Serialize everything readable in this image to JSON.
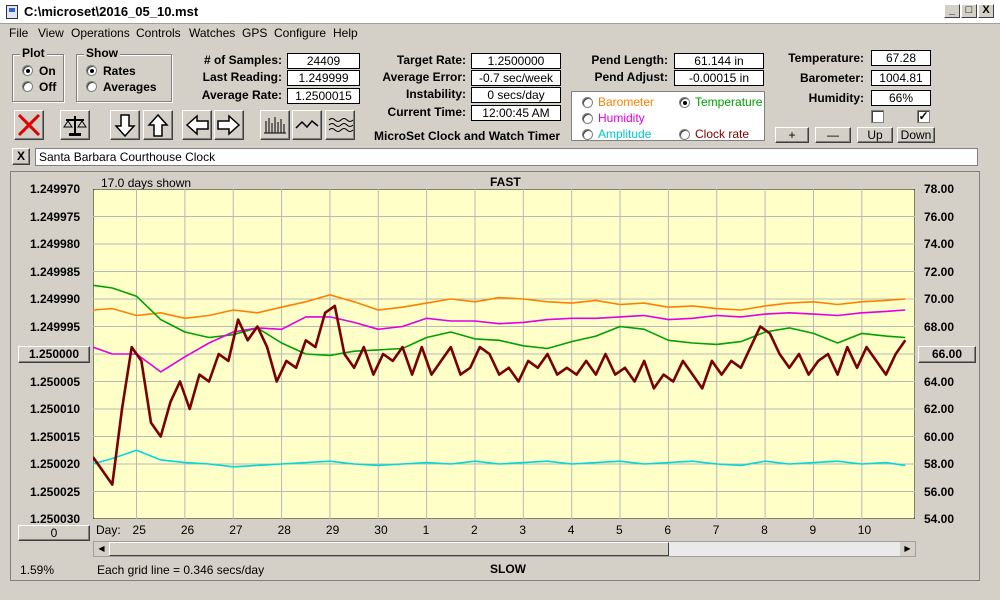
{
  "window": {
    "title": "C:\\microset\\2016_05_10.mst",
    "minimize": "_",
    "maximize": "□",
    "close": "X"
  },
  "menu": [
    "File",
    "View",
    "Operations",
    "Controls",
    "Watches",
    "GPS",
    "Configure",
    "Help"
  ],
  "plot_group": {
    "title": "Plot",
    "options": [
      "On",
      "Off"
    ],
    "selected": "On"
  },
  "show_group": {
    "title": "Show",
    "options": [
      "Rates",
      "Averages"
    ],
    "selected": "Rates"
  },
  "stats": {
    "samples_label": "# of Samples:",
    "samples": "24409",
    "last_reading_label": "Last Reading:",
    "last_reading": "1.249999",
    "average_rate_label": "Average Rate:",
    "average_rate": "1.2500015"
  },
  "rates": {
    "target_rate_label": "Target Rate:",
    "target_rate": "1.2500000",
    "average_error_label": "Average Error:",
    "average_error": "-0.7 sec/week",
    "instability_label": "Instability:",
    "instability": "0 secs/day",
    "current_time_label": "Current Time:",
    "current_time": "12:00:45 AM"
  },
  "app_name": "MicroSet Clock and Watch Timer",
  "pendulum": {
    "length_label": "Pend Length:",
    "length": "61.144 in",
    "adjust_label": "Pend Adjust:",
    "adjust": "-0.00015 in"
  },
  "sensor_select": {
    "options": [
      {
        "label": "Barometer",
        "color": "#ff8000",
        "checked": false
      },
      {
        "label": "Temperature",
        "color": "#00a000",
        "checked": true
      },
      {
        "label": "Humidity",
        "color": "#e000e0",
        "checked": false
      },
      {
        "label": "Amplitude",
        "color": "#00d0d0",
        "checked": false
      },
      {
        "label": "Clock rate",
        "color": "#800000",
        "checked": false
      }
    ]
  },
  "environment": {
    "temperature_label": "Temperature:",
    "temperature": "67.28",
    "barometer_label": "Barometer:",
    "barometer": "1004.81",
    "humidity_label": "Humidity:",
    "humidity": "66%",
    "checkbox1": false,
    "checkbox2": true
  },
  "scale_buttons": [
    "+",
    "—",
    "Up",
    "Down"
  ],
  "clock_name": {
    "close": "X",
    "value": "Santa Barbara Courthouse Clock"
  },
  "chart_data": {
    "type": "line",
    "days_shown": "17.0 days shown",
    "top_label": "FAST",
    "bottom_label": "SLOW",
    "left_axis": {
      "ticks": [
        "1.249970",
        "1.249975",
        "1.249980",
        "1.249985",
        "1.249990",
        "1.249995",
        "1.250000",
        "1.250005",
        "1.250010",
        "1.250015",
        "1.250020",
        "1.250025",
        "1.250030"
      ],
      "center_button": "1.250000",
      "ylim": [
        1.24997,
        1.25003
      ]
    },
    "right_axis": {
      "ticks": [
        "78.00",
        "76.00",
        "74.00",
        "72.00",
        "70.00",
        "68.00",
        "66.00",
        "64.00",
        "62.00",
        "60.00",
        "58.00",
        "56.00",
        "54.00"
      ],
      "center_button": "66.00",
      "ylim": [
        54,
        78
      ]
    },
    "x_axis": {
      "label": "Day:",
      "days": [
        "25",
        "26",
        "27",
        "28",
        "29",
        "30",
        "1",
        "2",
        "3",
        "4",
        "5",
        "6",
        "7",
        "8",
        "9",
        "10"
      ],
      "xlim": [
        24.1,
        41.1
      ]
    },
    "grid": true,
    "footer_left": "1.59%",
    "footer_grid": "Each grid line = 0.346 secs/day",
    "bottom_button": "0",
    "series": [
      {
        "name": "Barometer",
        "color": "#ff8000",
        "axis": "right",
        "x": [
          24.1,
          24.5,
          25.0,
          25.5,
          26.0,
          26.5,
          27.0,
          27.5,
          28.0,
          28.5,
          29.0,
          29.5,
          30.0,
          30.5,
          31.0,
          31.5,
          32.0,
          32.5,
          33.0,
          33.5,
          34.0,
          34.5,
          35.0,
          35.5,
          36.0,
          36.5,
          37.0,
          37.5,
          38.0,
          38.5,
          39.0,
          39.5,
          40.0,
          40.5,
          40.9
        ],
        "y": [
          69.2,
          69.3,
          68.8,
          69.0,
          68.6,
          68.8,
          69.2,
          69.0,
          69.4,
          69.8,
          70.3,
          69.8,
          69.2,
          69.4,
          69.7,
          70.0,
          69.8,
          70.1,
          70.0,
          69.8,
          69.7,
          69.9,
          69.6,
          69.7,
          69.4,
          69.5,
          69.3,
          69.2,
          69.5,
          69.7,
          69.8,
          69.6,
          69.8,
          69.9,
          70.0
        ]
      },
      {
        "name": "Temperature",
        "color": "#00a000",
        "axis": "right",
        "x": [
          24.1,
          24.5,
          25.0,
          25.5,
          26.0,
          26.5,
          27.0,
          27.5,
          28.0,
          28.5,
          29.0,
          29.5,
          30.0,
          30.5,
          31.0,
          31.5,
          32.0,
          32.5,
          33.0,
          33.5,
          34.0,
          34.5,
          35.0,
          35.5,
          36.0,
          36.5,
          37.0,
          37.5,
          38.0,
          38.5,
          39.0,
          39.5,
          40.0,
          40.5,
          40.9
        ],
        "y": [
          71.0,
          70.8,
          70.2,
          68.5,
          67.6,
          67.2,
          67.4,
          67.9,
          66.8,
          66.0,
          65.9,
          66.2,
          66.3,
          66.4,
          67.2,
          67.6,
          67.1,
          67.0,
          66.6,
          66.4,
          66.9,
          67.3,
          68.0,
          67.8,
          67.0,
          66.8,
          66.7,
          66.9,
          67.6,
          67.9,
          67.5,
          66.8,
          67.5,
          67.3,
          67.2
        ]
      },
      {
        "name": "Humidity",
        "color": "#e000e0",
        "axis": "right",
        "x": [
          24.1,
          24.5,
          25.0,
          25.5,
          26.0,
          26.5,
          27.0,
          27.5,
          28.0,
          28.5,
          29.0,
          29.5,
          30.0,
          30.5,
          31.0,
          31.5,
          32.0,
          32.5,
          33.0,
          33.5,
          34.0,
          34.5,
          35.0,
          35.5,
          36.0,
          36.5,
          37.0,
          37.5,
          38.0,
          38.5,
          39.0,
          39.5,
          40.0,
          40.5,
          40.9
        ],
        "y": [
          66.5,
          66.0,
          66.0,
          64.7,
          65.8,
          66.8,
          67.6,
          67.9,
          67.8,
          68.7,
          68.7,
          68.3,
          67.8,
          68.0,
          68.6,
          68.4,
          68.4,
          68.2,
          68.3,
          68.5,
          68.6,
          68.6,
          68.7,
          68.8,
          68.5,
          68.6,
          68.8,
          68.7,
          68.9,
          69.0,
          68.9,
          68.8,
          69.0,
          69.1,
          69.2
        ]
      },
      {
        "name": "Amplitude",
        "color": "#00d8d8",
        "axis": "right",
        "x": [
          24.1,
          24.5,
          25.0,
          25.5,
          26.0,
          26.5,
          27.0,
          27.5,
          28.0,
          28.5,
          29.0,
          29.5,
          30.0,
          30.5,
          31.0,
          31.5,
          32.0,
          32.5,
          33.0,
          33.5,
          34.0,
          34.5,
          35.0,
          35.5,
          36.0,
          36.5,
          37.0,
          37.5,
          38.0,
          38.5,
          39.0,
          39.5,
          40.0,
          40.5,
          40.9
        ],
        "y": [
          58.0,
          58.4,
          59.0,
          58.3,
          58.1,
          58.0,
          57.8,
          57.9,
          58.0,
          58.1,
          58.2,
          58.0,
          57.9,
          58.0,
          58.1,
          58.0,
          58.2,
          58.0,
          58.1,
          58.2,
          58.0,
          58.1,
          58.2,
          58.0,
          58.1,
          58.2,
          58.0,
          57.9,
          58.2,
          58.0,
          58.1,
          58.2,
          58.0,
          58.1,
          57.9
        ]
      },
      {
        "name": "Clock rate",
        "color": "#7a0000",
        "axis": "right",
        "x": [
          24.1,
          24.3,
          24.5,
          24.7,
          24.9,
          25.1,
          25.3,
          25.5,
          25.7,
          25.9,
          26.1,
          26.3,
          26.5,
          26.7,
          26.9,
          27.1,
          27.3,
          27.5,
          27.7,
          27.9,
          28.1,
          28.3,
          28.5,
          28.7,
          28.9,
          29.1,
          29.3,
          29.5,
          29.7,
          29.9,
          30.1,
          30.3,
          30.5,
          30.7,
          30.9,
          31.1,
          31.3,
          31.5,
          31.7,
          31.9,
          32.1,
          32.3,
          32.5,
          32.7,
          32.9,
          33.1,
          33.3,
          33.5,
          33.7,
          33.9,
          34.1,
          34.3,
          34.5,
          34.7,
          34.9,
          35.1,
          35.3,
          35.5,
          35.7,
          35.9,
          36.1,
          36.3,
          36.5,
          36.7,
          36.9,
          37.1,
          37.3,
          37.5,
          37.7,
          37.9,
          38.1,
          38.3,
          38.5,
          38.7,
          38.9,
          39.1,
          39.3,
          39.5,
          39.7,
          39.9,
          40.1,
          40.3,
          40.5,
          40.7,
          40.9
        ],
        "y": [
          58.5,
          57.5,
          56.5,
          62.0,
          66.5,
          65.5,
          61.0,
          60.0,
          62.5,
          64.0,
          62.0,
          64.5,
          64.0,
          66.0,
          65.5,
          68.5,
          67.0,
          68.0,
          66.5,
          64.0,
          65.5,
          65.0,
          67.0,
          66.5,
          69.0,
          69.5,
          66.0,
          65.0,
          66.5,
          64.5,
          66.0,
          65.5,
          66.5,
          64.5,
          66.5,
          64.5,
          65.5,
          66.5,
          64.5,
          65.0,
          66.5,
          66.0,
          64.5,
          65.0,
          64.0,
          65.5,
          65.0,
          66.0,
          64.5,
          65.0,
          64.5,
          65.5,
          64.5,
          66.0,
          64.5,
          65.0,
          64.0,
          65.5,
          63.5,
          64.5,
          64.0,
          65.5,
          64.5,
          63.5,
          65.5,
          64.5,
          65.5,
          65.0,
          66.5,
          68.0,
          67.5,
          66.0,
          65.0,
          66.0,
          64.5,
          65.5,
          66.0,
          64.5,
          66.5,
          65.0,
          66.5,
          65.5,
          64.5,
          66.0,
          67.0
        ]
      }
    ]
  }
}
